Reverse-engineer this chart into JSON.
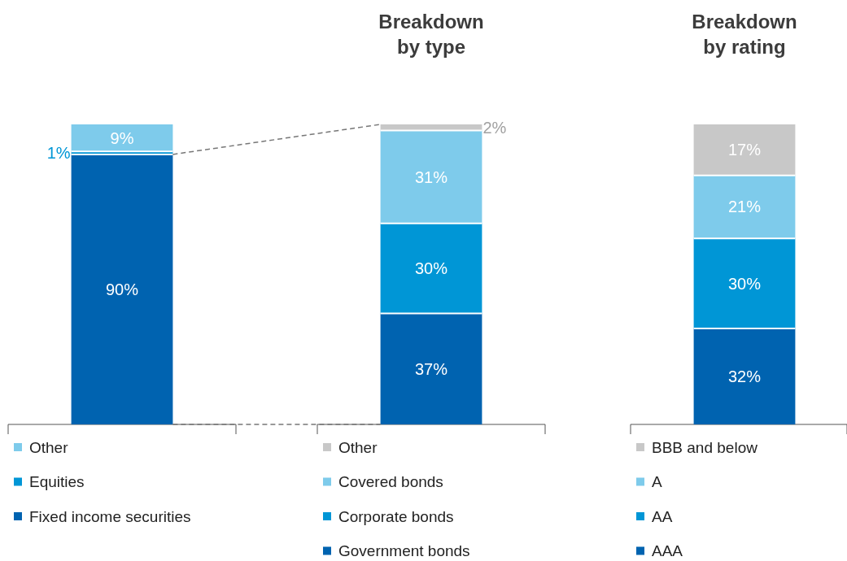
{
  "chart_data": [
    {
      "type": "bar",
      "stacked": true,
      "categories": [
        null
      ],
      "legend": "bottom",
      "series": [
        {
          "name": "Fixed income securities",
          "color": "#0063b0",
          "values": [
            90
          ],
          "value_labels": [
            "90%"
          ]
        },
        {
          "name": "Equities",
          "color": "#0096d6",
          "values": [
            1
          ],
          "value_labels": [
            "1%"
          ]
        },
        {
          "name": "Other",
          "color": "#7ecbeb",
          "values": [
            9
          ],
          "value_labels": [
            "9%"
          ]
        }
      ]
    },
    {
      "type": "bar",
      "stacked": true,
      "title": "Breakdown by type",
      "categories": [
        null
      ],
      "legend": "bottom",
      "series": [
        {
          "name": "Government bonds",
          "color": "#0063b0",
          "values": [
            37
          ],
          "value_labels": [
            "37%"
          ]
        },
        {
          "name": "Corporate bonds",
          "color": "#0096d6",
          "values": [
            30
          ],
          "value_labels": [
            "30%"
          ]
        },
        {
          "name": "Covered bonds",
          "color": "#7ecbeb",
          "values": [
            31
          ],
          "value_labels": [
            "31%"
          ]
        },
        {
          "name": "Other",
          "color": "#c8c8c8",
          "values": [
            2
          ],
          "value_labels": [
            "2%"
          ]
        }
      ]
    },
    {
      "type": "bar",
      "stacked": true,
      "title": "Breakdown by rating",
      "categories": [
        null
      ],
      "legend": "bottom",
      "series": [
        {
          "name": "AAA",
          "color": "#0063b0",
          "values": [
            32
          ],
          "value_labels": [
            "32%"
          ]
        },
        {
          "name": "AA",
          "color": "#0096d6",
          "values": [
            30
          ],
          "value_labels": [
            "30%"
          ]
        },
        {
          "name": "A",
          "color": "#7ecbeb",
          "values": [
            21
          ],
          "value_labels": [
            "21%"
          ]
        },
        {
          "name": "BBB and below",
          "color": "#c8c8c8",
          "values": [
            17
          ],
          "value_labels": [
            "17%"
          ]
        }
      ]
    }
  ]
}
